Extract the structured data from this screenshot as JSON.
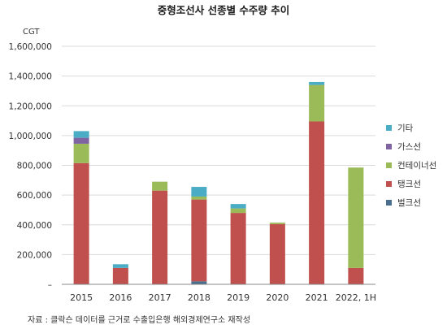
{
  "chart_data": {
    "type": "bar",
    "stacked": true,
    "title": "중형조선사 선종별 수주량 추이",
    "unit_label": "CGT",
    "source": "자료 : 클락슨 데이터를 근거로 수출입은행 해외경제연구소 재작성",
    "categories": [
      "2015",
      "2016",
      "2017",
      "2018",
      "2019",
      "2020",
      "2021",
      "2022, 1H"
    ],
    "ylim": [
      0,
      1600000
    ],
    "yticks": [
      0,
      200000,
      400000,
      600000,
      800000,
      1000000,
      1200000,
      1400000,
      1600000
    ],
    "ytick_labels": [
      "–",
      "200,000",
      "400,000",
      "600,000",
      "800,000",
      "1,000,000",
      "1,200,000",
      "1,400,000",
      "1,600,000"
    ],
    "grid": true,
    "legend_position": "right",
    "series": [
      {
        "name": "벌크선",
        "color": "#4a6e8e",
        "values": [
          0,
          0,
          0,
          20000,
          0,
          0,
          0,
          0
        ]
      },
      {
        "name": "탱크선",
        "color": "#c0504d",
        "values": [
          815000,
          110000,
          630000,
          550000,
          480000,
          405000,
          1095000,
          110000
        ]
      },
      {
        "name": "컨테이너선",
        "color": "#9bbb59",
        "values": [
          130000,
          0,
          60000,
          20000,
          30000,
          10000,
          245000,
          675000
        ]
      },
      {
        "name": "가스선",
        "color": "#8064a2",
        "values": [
          40000,
          0,
          0,
          0,
          0,
          0,
          0,
          0
        ]
      },
      {
        "name": "기타",
        "color": "#4bacc6",
        "values": [
          45000,
          25000,
          0,
          65000,
          30000,
          0,
          20000,
          0
        ]
      }
    ],
    "legend_order": [
      "기타",
      "가스선",
      "컨테이너선",
      "탱크선",
      "벌크선"
    ]
  }
}
